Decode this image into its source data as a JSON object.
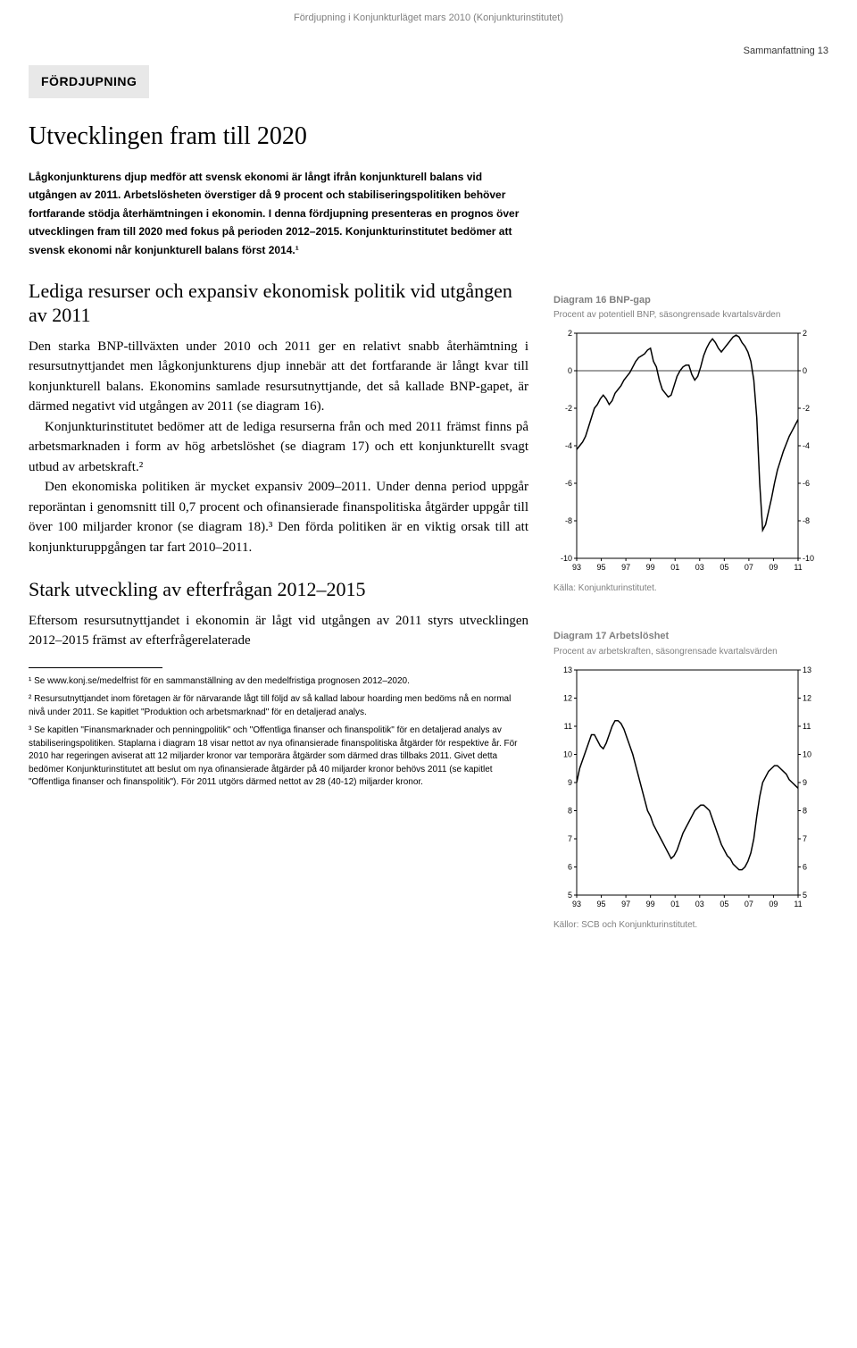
{
  "header_context": "Fördjupning i Konjunkturläget mars 2010 (Konjunkturinstitutet)",
  "page_corner": "Sammanfattning   13",
  "section_tab": "FÖRDJUPNING",
  "title": "Utvecklingen fram till 2020",
  "intro": "Lågkonjunkturens djup medför att svensk ekonomi är långt ifrån konjunkturell balans vid utgången av 2011. Arbetslösheten överstiger då 9 procent och stabiliseringspolitiken behöver fortfarande stödja återhämtningen i ekonomin. I denna fördjupning presenteras en prognos över utvecklingen fram till 2020 med fokus på perioden 2012–2015. Konjunkturinstitutet bedömer att svensk ekonomi når konjunkturell balans först 2014.¹",
  "subtitle1": "Lediga resurser och expansiv ekonomisk politik vid utgången av 2011",
  "body1_p1": "Den starka BNP-tillväxten under 2010 och 2011 ger en relativt snabb återhämtning i resursutnyttjandet men lågkonjunkturens djup innebär att det fortfarande är långt kvar till konjunkturell balans. Ekonomins samlade resursutnyttjande, det så kallade BNP-gapet, är därmed negativt vid utgången av 2011 (se diagram 16).",
  "body1_p2": "Konjunkturinstitutet bedömer att de lediga resurserna från och med 2011 främst finns på arbetsmarknaden i form av hög arbetslöshet (se diagram 17) och ett konjunkturellt svagt utbud av arbetskraft.²",
  "body1_p3": "Den ekonomiska politiken är mycket expansiv 2009–2011. Under denna period uppgår reporäntan i genomsnitt till 0,7 procent och ofinansierade finanspolitiska åtgärder uppgår till över 100 miljarder kronor (se diagram 18).³ Den förda politiken är en viktig orsak till att konjunkturuppgången tar fart 2010–2011.",
  "subtitle2": "Stark utveckling av efterfrågan 2012–2015",
  "body2_p1": "Eftersom resursutnyttjandet i ekonomin är lågt vid utgången av 2011 styrs utvecklingen 2012–2015 främst av efterfrågerelaterade",
  "fn1": "¹ Se www.konj.se/medelfrist för en sammanställning av den medelfristiga prognosen 2012–2020.",
  "fn2": "² Resursutnyttjandet inom företagen är för närvarande lågt till följd av så kallad labour hoarding men bedöms nå en normal nivå under 2011. Se kapitlet \"Produktion och arbetsmarknad\" för en detaljerad analys.",
  "fn3": "³ Se kapitlen \"Finansmarknader och penningpolitik\" och \"Offentliga finanser och finanspolitik\" för en detaljerad analys av stabiliseringspolitiken. Staplarna i diagram 18 visar nettot av nya ofinansierade finanspolitiska åtgärder för respektive år. För 2010 har regeringen aviserat att 12 miljarder kronor var temporära åtgärder som därmed dras tillbaks 2011. Givet detta bedömer Konjunkturinstitutet att beslut om nya ofinansierade åtgärder på 40 miljarder kronor behövs 2011 (se kapitlet \"Offentliga finanser och finanspolitik\"). För 2011 utgörs därmed nettot av 28 (40-12) miljarder kronor.",
  "chart16": {
    "type": "line",
    "title": "Diagram 16 BNP-gap",
    "subtitle": "Procent av potentiell BNP, säsongrensade kvartalsvärden",
    "source": "Källa: Konjunkturinstitutet.",
    "ylim": [
      -10,
      2
    ],
    "ytick_step": 2,
    "x_ticks": [
      "93",
      "95",
      "97",
      "99",
      "01",
      "03",
      "05",
      "07",
      "09",
      "11"
    ],
    "line_color": "#000000",
    "line_width": 1.5,
    "grid_color": "#cccccc",
    "background_color": "#ffffff",
    "frame_color": "#000000",
    "label_fontsize": 9,
    "values": [
      -4.2,
      -4.0,
      -3.8,
      -3.5,
      -3.0,
      -2.5,
      -2.0,
      -1.8,
      -1.5,
      -1.3,
      -1.5,
      -1.8,
      -1.6,
      -1.2,
      -1.0,
      -0.8,
      -0.5,
      -0.3,
      -0.1,
      0.2,
      0.5,
      0.7,
      0.8,
      0.9,
      1.1,
      1.2,
      0.5,
      0.2,
      -0.5,
      -1.0,
      -1.2,
      -1.4,
      -1.3,
      -0.8,
      -0.3,
      0.0,
      0.2,
      0.3,
      0.3,
      -0.2,
      -0.5,
      -0.3,
      0.2,
      0.8,
      1.2,
      1.5,
      1.7,
      1.5,
      1.2,
      1.0,
      1.2,
      1.4,
      1.6,
      1.8,
      1.9,
      1.8,
      1.5,
      1.3,
      1.0,
      0.5,
      -0.5,
      -2.5,
      -6.0,
      -8.5,
      -8.2,
      -7.5,
      -6.8,
      -6.0,
      -5.3,
      -4.8,
      -4.3,
      -3.9,
      -3.5,
      -3.2,
      -2.9,
      -2.6
    ]
  },
  "chart17": {
    "type": "line",
    "title": "Diagram 17 Arbetslöshet",
    "subtitle": "Procent av arbetskraften, säsongrensade kvartalsvärden",
    "source": "Källor: SCB och Konjunkturinstitutet.",
    "ylim": [
      5,
      13
    ],
    "ytick_step": 1,
    "x_ticks": [
      "93",
      "95",
      "97",
      "99",
      "01",
      "03",
      "05",
      "07",
      "09",
      "11"
    ],
    "line_color": "#000000",
    "line_width": 1.5,
    "grid_color": "#cccccc",
    "background_color": "#ffffff",
    "frame_color": "#000000",
    "label_fontsize": 9,
    "values": [
      9.0,
      9.5,
      9.8,
      10.1,
      10.4,
      10.7,
      10.7,
      10.5,
      10.3,
      10.2,
      10.4,
      10.7,
      11.0,
      11.2,
      11.2,
      11.1,
      10.9,
      10.6,
      10.3,
      10.0,
      9.6,
      9.2,
      8.8,
      8.4,
      8.0,
      7.8,
      7.5,
      7.3,
      7.1,
      6.9,
      6.7,
      6.5,
      6.3,
      6.4,
      6.6,
      6.9,
      7.2,
      7.4,
      7.6,
      7.8,
      8.0,
      8.1,
      8.2,
      8.2,
      8.1,
      8.0,
      7.7,
      7.4,
      7.1,
      6.8,
      6.6,
      6.4,
      6.3,
      6.1,
      6.0,
      5.9,
      5.9,
      6.0,
      6.2,
      6.5,
      7.0,
      7.8,
      8.5,
      9.0,
      9.2,
      9.4,
      9.5,
      9.6,
      9.6,
      9.5,
      9.4,
      9.3,
      9.1,
      9.0,
      8.9,
      8.8
    ]
  }
}
